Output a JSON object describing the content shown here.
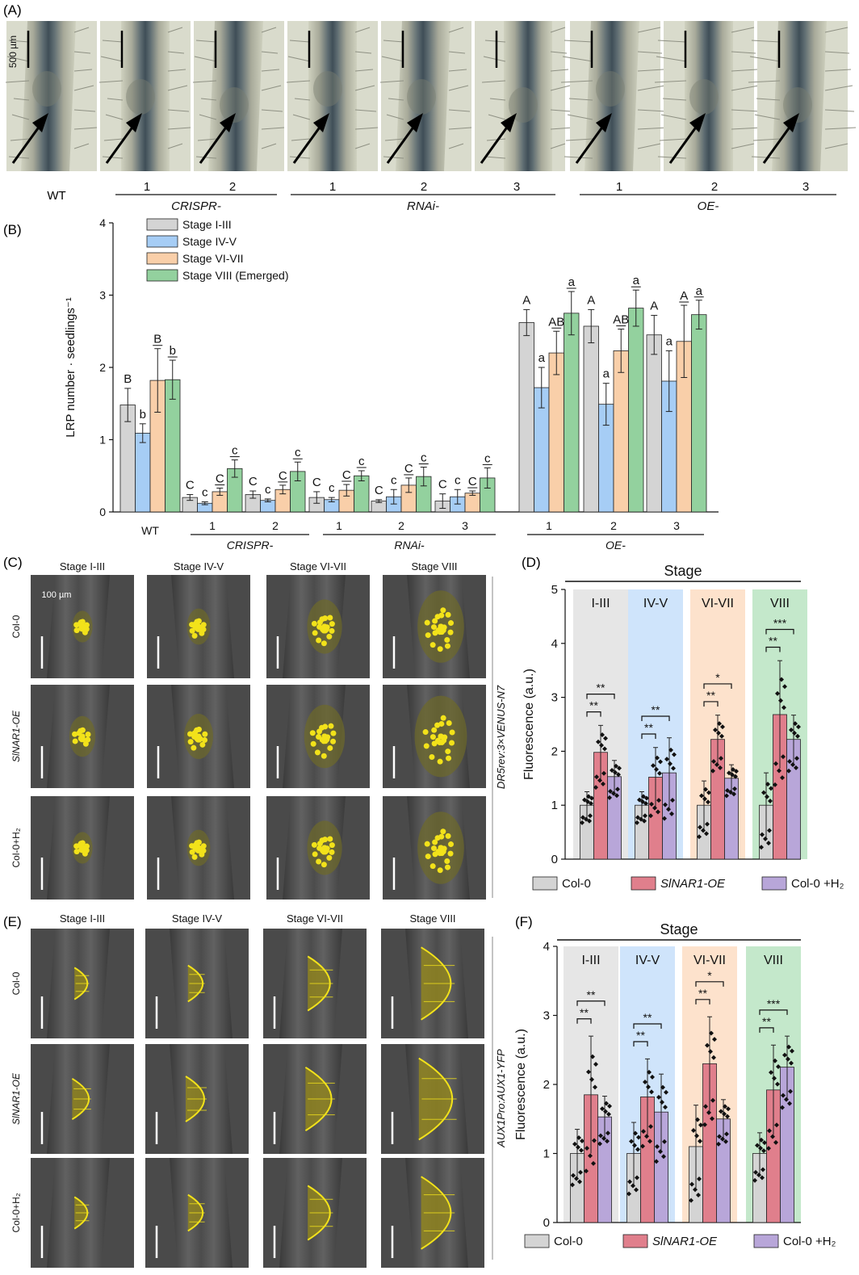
{
  "panel_letters": {
    "a": "(A)",
    "b": "(B)",
    "c": "(C)",
    "d": "(D)",
    "e": "(E)",
    "f": "(F)"
  },
  "panel_a": {
    "scale_label": "500 µm",
    "wt_label": "WT",
    "groups": [
      {
        "name": "CRISPR-",
        "lines": [
          "1",
          "2"
        ]
      },
      {
        "name": "RNAi-",
        "lines": [
          "1",
          "2",
          "3"
        ]
      },
      {
        "name": "OE-",
        "lines": [
          "1",
          "2",
          "3"
        ]
      }
    ]
  },
  "micrographs": {
    "stage_headers": [
      "Stage I-III",
      "Stage IV-V",
      "Stage VI-VII",
      "Stage VIII"
    ],
    "row_labels": [
      "Col-0",
      "SlNAR1-OE",
      "Col-0+H₂"
    ],
    "scale_label": "100 µm",
    "reporter_c": "DR5rev:3×VENUS-N7",
    "reporter_e": "AUX1Pro:AUX1-YFP"
  },
  "colors": {
    "grey": "#d4d4d4",
    "blue": "#a6cdf5",
    "peach": "#f9cfa9",
    "green": "#93d19e",
    "red": "#e07f8c",
    "purple": "#b8a6d9",
    "shade_grey": "#e6e6e6",
    "shade_blue": "#cfe4fb",
    "shade_peach": "#fde2cc",
    "shade_green": "#c4e8cb",
    "fluor_yellow": "#f2e21a"
  },
  "chart_data": [
    {
      "type": "bar",
      "panel": "B",
      "ylabel": "LRP number · seedlings⁻¹",
      "ylim": [
        0,
        4
      ],
      "yticks": [
        0,
        1,
        2,
        3,
        4
      ],
      "categories": [
        "WT",
        "CRISPR-1",
        "CRISPR-2",
        "RNAi-1",
        "RNAi-2",
        "RNAi-3",
        "OE-1",
        "OE-2",
        "OE-3"
      ],
      "category_labels": [
        "WT",
        "1",
        "2",
        "1",
        "2",
        "3",
        "1",
        "2",
        "3"
      ],
      "group_labels": [
        {
          "name": "CRISPR-",
          "from": 1,
          "to": 2
        },
        {
          "name": "RNAi-",
          "from": 3,
          "to": 5
        },
        {
          "name": "OE-",
          "from": 6,
          "to": 8
        }
      ],
      "legend": "top-left",
      "series": [
        {
          "name": "Stage I-III",
          "color": "#d4d4d4",
          "values": [
            1.48,
            0.2,
            0.24,
            0.2,
            0.15,
            0.15,
            2.62,
            2.57,
            2.45
          ],
          "errors": [
            0.23,
            0.04,
            0.05,
            0.08,
            0.02,
            0.1,
            0.18,
            0.23,
            0.27
          ],
          "letters": [
            "B",
            "C",
            "C",
            "C",
            "C",
            "C",
            "A",
            "A",
            "A"
          ]
        },
        {
          "name": "Stage IV-V",
          "color": "#a6cdf5",
          "values": [
            1.09,
            0.12,
            0.16,
            0.17,
            0.21,
            0.21,
            1.72,
            1.49,
            1.81
          ],
          "errors": [
            0.13,
            0.02,
            0.02,
            0.03,
            0.1,
            0.1,
            0.28,
            0.29,
            0.42
          ],
          "letters": [
            "b",
            "c",
            "c",
            "c",
            "c",
            "c",
            "a",
            "a",
            "a"
          ]
        },
        {
          "name": "Stage VI-VII",
          "color": "#f9cfa9",
          "values": [
            1.82,
            0.28,
            0.31,
            0.3,
            0.37,
            0.26,
            2.2,
            2.23,
            2.36
          ],
          "errors": [
            0.44,
            0.05,
            0.06,
            0.08,
            0.1,
            0.03,
            0.3,
            0.3,
            0.5
          ],
          "letters": [
            "B",
            "C",
            "C",
            "C",
            "C",
            "C",
            "AB",
            "AB",
            "A"
          ]
        },
        {
          "name": "Stage VIII (Emerged)",
          "color": "#93d19e",
          "values": [
            1.83,
            0.6,
            0.56,
            0.5,
            0.49,
            0.47,
            2.75,
            2.82,
            2.73
          ],
          "errors": [
            0.27,
            0.12,
            0.13,
            0.07,
            0.13,
            0.14,
            0.3,
            0.25,
            0.2
          ],
          "letters": [
            "b",
            "c",
            "c",
            "c",
            "c",
            "c",
            "a",
            "a",
            "a"
          ]
        }
      ]
    },
    {
      "type": "bar",
      "panel": "D",
      "title": "Stage",
      "ylabel": "Fluorescence (a.u.)",
      "ylim": [
        0,
        5
      ],
      "yticks": [
        0,
        1,
        2,
        3,
        4,
        5
      ],
      "categories": [
        "I-III",
        "IV-V",
        "VI-VII",
        "VIII"
      ],
      "legend": "bottom",
      "series": [
        {
          "name": "Col-0",
          "color": "#d4d4d4",
          "values": [
            1.0,
            1.0,
            1.0,
            1.0
          ],
          "errors": [
            0.25,
            0.25,
            0.45,
            0.6
          ]
        },
        {
          "name": "SlNAR1-OE",
          "color": "#e07f8c",
          "values": [
            1.98,
            1.52,
            2.22,
            2.68
          ],
          "errors": [
            0.5,
            0.55,
            0.45,
            1.0
          ]
        },
        {
          "name": "Col-0 +H₂",
          "color": "#b8a6d9",
          "values": [
            1.53,
            1.6,
            1.5,
            2.22
          ],
          "errors": [
            0.3,
            0.65,
            0.25,
            0.45
          ]
        }
      ],
      "significance": [
        [
          "**",
          "**"
        ],
        [
          "**",
          "**"
        ],
        [
          "**",
          "*"
        ],
        [
          "**",
          "***"
        ]
      ]
    },
    {
      "type": "bar",
      "panel": "F",
      "title": "Stage",
      "ylabel": "Fluorescence (a.u.)",
      "ylim": [
        0,
        4
      ],
      "yticks": [
        0,
        1,
        2,
        3,
        4
      ],
      "categories": [
        "I-III",
        "IV-V",
        "VI-VII",
        "VIII"
      ],
      "legend": "bottom",
      "series": [
        {
          "name": "Col-0",
          "color": "#d4d4d4",
          "values": [
            1.0,
            1.0,
            1.1,
            1.0
          ],
          "errors": [
            0.35,
            0.45,
            0.6,
            0.3
          ]
        },
        {
          "name": "SlNAR1-OE",
          "color": "#e07f8c",
          "values": [
            1.85,
            1.82,
            2.3,
            1.92
          ],
          "errors": [
            0.85,
            0.55,
            0.68,
            0.65
          ]
        },
        {
          "name": "Col-0 +H₂",
          "color": "#b8a6d9",
          "values": [
            1.53,
            1.6,
            1.5,
            2.25
          ],
          "errors": [
            0.3,
            0.55,
            0.28,
            0.45
          ]
        }
      ],
      "significance": [
        [
          "**",
          "**"
        ],
        [
          "**",
          "**"
        ],
        [
          "**",
          "*"
        ],
        [
          "**",
          "***"
        ]
      ]
    }
  ]
}
